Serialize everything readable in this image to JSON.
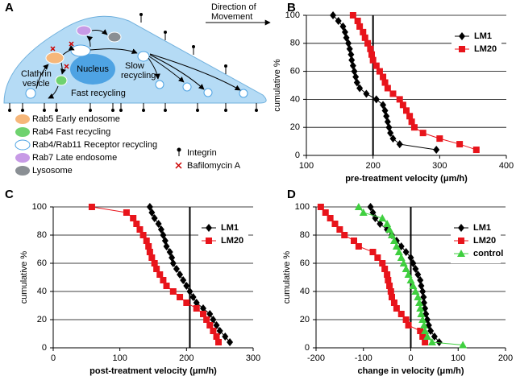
{
  "diagram": {
    "panel_label": "A",
    "direction_label": [
      "Direction of",
      "Movement"
    ],
    "nucleus_label": "Nucleus",
    "slow_recycling_label": [
      "Slow",
      "recycling"
    ],
    "clathrin_label": [
      "Clathrin",
      "vesicle"
    ],
    "fast_recycling_label": "Fast recycling",
    "legend": [
      "Rab5 Early endosome",
      "Rab4 Fast recycling",
      "Rab4/Rab11 Receptor recycling",
      "Rab7 Late endosome",
      "Lysosome"
    ],
    "symbol_legend": [
      "Integrin",
      "Bafilomycin A"
    ]
  },
  "chart_data": [
    {
      "type": "line",
      "panel_label": "B",
      "xlabel": "pre-treatment velocity (μm/h)",
      "ylabel": "cumulative %",
      "xlim": [
        100,
        400
      ],
      "xticks": [
        100,
        200,
        300,
        400
      ],
      "ylim": [
        0,
        100
      ],
      "yticks": [
        0,
        20,
        40,
        60,
        80,
        100
      ],
      "grid": true,
      "reference_x": 200,
      "legend": "upper right",
      "series": [
        {
          "name": "LM1",
          "color": "#000000",
          "marker": "diamond",
          "x": [
            140,
            148,
            155,
            158,
            160,
            163,
            165,
            167,
            168,
            170,
            172,
            174,
            176,
            180,
            190,
            205,
            215,
            218,
            220,
            222,
            224,
            226,
            230,
            240,
            295
          ],
          "values": [
            100,
            96,
            92,
            88,
            84,
            80,
            76,
            72,
            68,
            64,
            60,
            56,
            52,
            48,
            44,
            40,
            36,
            32,
            28,
            24,
            20,
            16,
            12,
            8,
            4
          ]
        },
        {
          "name": "LM20",
          "color": "#e8141b",
          "marker": "square",
          "x": [
            170,
            177,
            180,
            185,
            188,
            192,
            196,
            198,
            200,
            205,
            210,
            215,
            218,
            222,
            230,
            240,
            245,
            250,
            255,
            258,
            262,
            275,
            300,
            330,
            355
          ],
          "values": [
            100,
            96,
            92,
            88,
            84,
            80,
            76,
            72,
            68,
            64,
            60,
            56,
            52,
            48,
            44,
            40,
            36,
            32,
            28,
            24,
            20,
            16,
            12,
            8,
            4
          ]
        }
      ]
    },
    {
      "type": "line",
      "panel_label": "C",
      "xlabel": "post-treatment velocity (μm/h)",
      "ylabel": "cumulative %",
      "xlim": [
        0,
        300
      ],
      "xticks": [
        0,
        100,
        200,
        300
      ],
      "ylim": [
        0,
        100
      ],
      "yticks": [
        0,
        20,
        40,
        60,
        80,
        100
      ],
      "grid": true,
      "reference_x": 205,
      "legend": "upper right",
      "series": [
        {
          "name": "LM1",
          "color": "#000000",
          "marker": "diamond",
          "x": [
            145,
            148,
            152,
            158,
            162,
            165,
            168,
            170,
            175,
            178,
            180,
            185,
            190,
            195,
            200,
            205,
            210,
            215,
            225,
            235,
            240,
            245,
            250,
            258,
            265
          ],
          "values": [
            100,
            96,
            92,
            88,
            84,
            80,
            76,
            72,
            68,
            64,
            60,
            56,
            52,
            48,
            44,
            40,
            36,
            32,
            28,
            24,
            20,
            16,
            12,
            8,
            4
          ]
        },
        {
          "name": "LM20",
          "color": "#e8141b",
          "marker": "square",
          "x": [
            58,
            110,
            120,
            125,
            130,
            135,
            140,
            143,
            145,
            148,
            152,
            155,
            160,
            165,
            170,
            180,
            190,
            200,
            215,
            225,
            230,
            235,
            240,
            245,
            248
          ],
          "values": [
            100,
            96,
            92,
            88,
            84,
            80,
            76,
            72,
            68,
            64,
            60,
            56,
            52,
            48,
            44,
            40,
            36,
            32,
            28,
            24,
            20,
            16,
            12,
            8,
            4
          ]
        }
      ]
    },
    {
      "type": "line",
      "panel_label": "D",
      "xlabel": "change in velocity (μm/h)",
      "ylabel": "cumulative %",
      "xlim": [
        -200,
        200
      ],
      "xticks": [
        -200,
        -100,
        0,
        100,
        200
      ],
      "ylim": [
        0,
        100
      ],
      "yticks": [
        0,
        20,
        40,
        60,
        80,
        100
      ],
      "grid": true,
      "reference_x": 0,
      "legend": "upper right",
      "series": [
        {
          "name": "LM1",
          "color": "#000000",
          "marker": "diamond",
          "x": [
            -85,
            -80,
            -75,
            -65,
            -50,
            -40,
            -30,
            -20,
            -10,
            0,
            5,
            10,
            15,
            20,
            22,
            25,
            27,
            28,
            30,
            32,
            35,
            38,
            42,
            50,
            60
          ],
          "values": [
            100,
            96,
            92,
            88,
            84,
            80,
            76,
            72,
            68,
            64,
            60,
            56,
            52,
            48,
            44,
            40,
            36,
            32,
            28,
            24,
            20,
            16,
            12,
            8,
            4
          ]
        },
        {
          "name": "LM20",
          "color": "#e8141b",
          "marker": "square",
          "x": [
            -190,
            -180,
            -170,
            -160,
            -150,
            -140,
            -120,
            -110,
            -80,
            -70,
            -60,
            -55,
            -50,
            -48,
            -45,
            -42,
            -40,
            -35,
            -30,
            -20,
            -10,
            -5,
            20,
            25,
            30
          ],
          "values": [
            100,
            96,
            92,
            88,
            84,
            80,
            76,
            72,
            68,
            64,
            60,
            56,
            52,
            48,
            44,
            40,
            36,
            32,
            28,
            24,
            20,
            16,
            12,
            8,
            4
          ]
        },
        {
          "name": "control",
          "color": "#3fcf3f",
          "marker": "triangle",
          "x": [
            -110,
            -100,
            -60,
            -50,
            -45,
            -40,
            -35,
            -30,
            -25,
            -20,
            -15,
            -10,
            -5,
            0,
            5,
            10,
            15,
            18,
            20,
            22,
            25,
            28,
            30,
            35,
            45,
            110
          ],
          "values": [
            100,
            96,
            92,
            88,
            84,
            80,
            76,
            72,
            68,
            64,
            60,
            56,
            52,
            48,
            44,
            40,
            36,
            32,
            28,
            24,
            20,
            16,
            12,
            8,
            4,
            2
          ]
        }
      ]
    }
  ]
}
